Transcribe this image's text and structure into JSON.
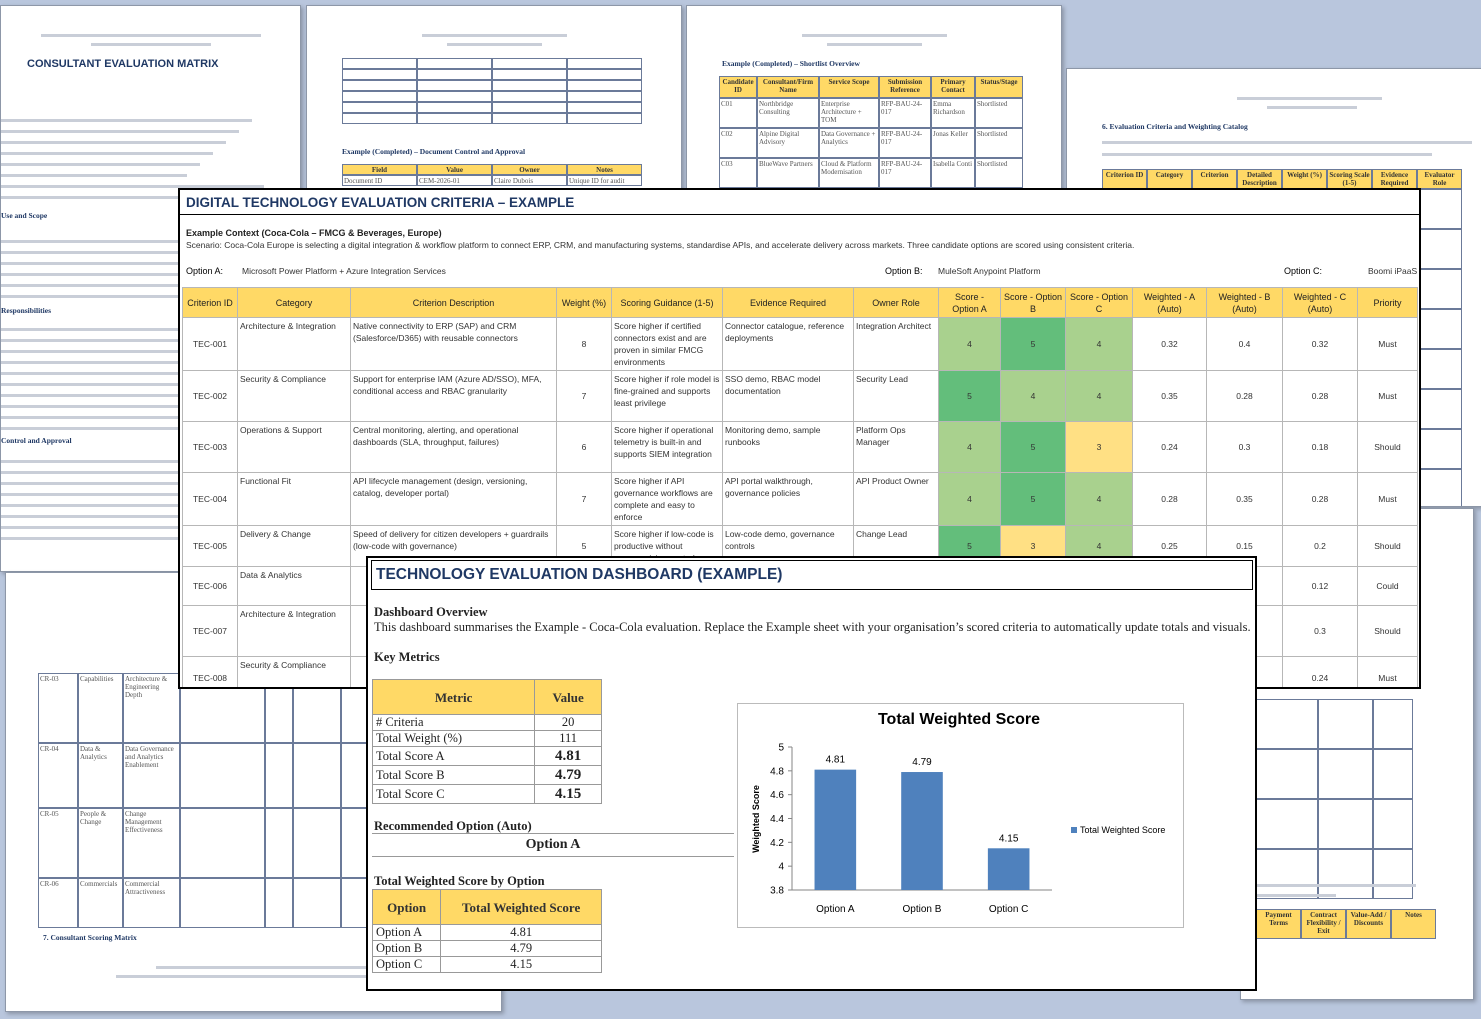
{
  "background_pages": {
    "matrix_cover": {
      "title": "CONSULTANT EVALUATION MATRIX",
      "headings": [
        "Use and Scope",
        "Responsibilities",
        "Control and Approval"
      ]
    },
    "document_control": {
      "section": "Example (Completed) – Document Control and Approval",
      "headers": [
        "Field",
        "Value",
        "Owner",
        "Notes"
      ],
      "row": [
        "Document ID",
        "CEM-2026-01",
        "Claire Dubois",
        "Unique ID for audit"
      ]
    },
    "shortlist": {
      "section": "Example (Completed) – Shortlist Overview",
      "headers": [
        "Candidate ID",
        "Consultant/Firm Name",
        "Service Scope",
        "Submission Reference",
        "Primary Contact",
        "Status/Stage"
      ],
      "rows": [
        [
          "C01",
          "Northbridge Consulting",
          "Enterprise Architecture + TOM",
          "RFP-BAU-24-017",
          "Emma Richardson",
          "Shortlisted"
        ],
        [
          "C02",
          "Alpine Digital Advisory",
          "Data Governance + Analytics",
          "RFP-BAU-24-017",
          "Jonas Keller",
          "Shortlisted"
        ],
        [
          "C03",
          "BlueWave Partners",
          "Cloud & Platform Modernisation",
          "RFP-BAU-24-017",
          "Isabella Conti",
          "Shortlisted"
        ]
      ]
    },
    "catalog": {
      "section": "6. Evaluation Criteria and Weighting Catalog",
      "headers": [
        "Criterion ID",
        "Category",
        "Criterion",
        "Detailed Description",
        "Weight (%)",
        "Scoring Scale (1-5)",
        "Evidence Required",
        "Evaluator Role"
      ]
    },
    "scoring_matrix": {
      "caption": "7. Consultant Scoring Matrix",
      "rows": [
        [
          "CR-03",
          "Capabilities",
          "Architecture & Engineering Depth"
        ],
        [
          "CR-04",
          "Data & Analytics",
          "Data Governance and Analytics Enablement"
        ],
        [
          "CR-05",
          "People & Change",
          "Change Management Effectiveness"
        ],
        [
          "CR-06",
          "Commercials",
          "Commercial Attractiveness"
        ]
      ]
    },
    "commercials": {
      "headers": [
        "Payment Terms",
        "Contract Flexibility / Exit",
        "Value-Add / Discounts",
        "Notes"
      ]
    }
  },
  "criteria_sheet": {
    "title": "DIGITAL TECHNOLOGY EVALUATION CRITERIA – EXAMPLE",
    "context_heading": "Example Context (Coca-Cola – FMCG & Beverages, Europe)",
    "scenario": "Scenario: Coca-Cola Europe is selecting a digital integration & workflow platform to connect ERP, CRM, and manufacturing systems, standardise APIs, and accelerate delivery across markets. Three candidate options are scored using consistent criteria.",
    "options": [
      {
        "label": "Option A:",
        "value": "Microsoft Power Platform + Azure Integration Services"
      },
      {
        "label": "Option B:",
        "value": "MuleSoft Anypoint Platform"
      },
      {
        "label": "Option C:",
        "value": "Boomi iPaaS"
      }
    ],
    "columns": [
      "Criterion ID",
      "Category",
      "Criterion Description",
      "Weight (%)",
      "Scoring Guidance (1-5)",
      "Evidence Required",
      "Owner Role",
      "Score - Option A",
      "Score - Option B",
      "Score - Option C",
      "Weighted - A (Auto)",
      "Weighted - B (Auto)",
      "Weighted - C (Auto)",
      "Priority"
    ],
    "rows": [
      {
        "id": "TEC-001",
        "category": "Architecture & Integration",
        "description": "Native connectivity to ERP (SAP) and CRM (Salesforce/D365) with reusable connectors",
        "weight": 8,
        "guidance": "Score higher if certified connectors exist and are proven in similar FMCG environments",
        "evidence": "Connector catalogue, reference deployments",
        "owner": "Integration Architect",
        "score_a": 4,
        "score_b": 5,
        "score_c": 4,
        "weighted_a": 0.32,
        "weighted_b": 0.4,
        "weighted_c": 0.32,
        "priority": "Must"
      },
      {
        "id": "TEC-002",
        "category": "Security & Compliance",
        "description": "Support for enterprise IAM (Azure AD/SSO), MFA, conditional access and RBAC granularity",
        "weight": 7,
        "guidance": "Score higher if role model is fine-grained and supports least privilege",
        "evidence": "SSO demo, RBAC model documentation",
        "owner": "Security Lead",
        "score_a": 5,
        "score_b": 4,
        "score_c": 4,
        "weighted_a": 0.35,
        "weighted_b": 0.28,
        "weighted_c": 0.28,
        "priority": "Must"
      },
      {
        "id": "TEC-003",
        "category": "Operations & Support",
        "description": "Central monitoring, alerting, and operational dashboards (SLA, throughput, failures)",
        "weight": 6,
        "guidance": "Score higher if operational telemetry is built-in and supports SIEM integration",
        "evidence": "Monitoring demo, sample runbooks",
        "owner": "Platform Ops Manager",
        "score_a": 4,
        "score_b": 5,
        "score_c": 3,
        "weighted_a": 0.24,
        "weighted_b": 0.3,
        "weighted_c": 0.18,
        "priority": "Should"
      },
      {
        "id": "TEC-004",
        "category": "Functional Fit",
        "description": "API lifecycle management (design, versioning, catalog, developer portal)",
        "weight": 7,
        "guidance": "Score higher if API governance workflows are complete and easy to enforce",
        "evidence": "API portal walkthrough, governance policies",
        "owner": "API Product Owner",
        "score_a": 4,
        "score_b": 5,
        "score_c": 4,
        "weighted_a": 0.28,
        "weighted_b": 0.35,
        "weighted_c": 0.28,
        "priority": "Must"
      },
      {
        "id": "TEC-005",
        "category": "Delivery & Change",
        "description": "Speed of delivery for citizen developers + guardrails (low-code with governance)",
        "weight": 5,
        "guidance": "Score higher if low-code is productive without compromising controls",
        "evidence": "Low-code demo, governance controls",
        "owner": "Change Lead",
        "score_a": 5,
        "score_b": 3,
        "score_c": 4,
        "weighted_a": 0.25,
        "weighted_b": 0.15,
        "weighted_c": 0.2,
        "priority": "Should"
      },
      {
        "id": "TEC-006",
        "category": "Data & Analytics",
        "weighted_c": 0.12,
        "priority": "Could"
      },
      {
        "id": "TEC-007",
        "category": "Architecture & Integration",
        "weighted_c": 0.3,
        "priority": "Should"
      },
      {
        "id": "TEC-008",
        "category": "Security & Compliance",
        "weighted_c": 0.24,
        "priority": "Must"
      }
    ]
  },
  "dashboard": {
    "title": "TECHNOLOGY EVALUATION DASHBOARD (EXAMPLE)",
    "overview_heading": "Dashboard Overview",
    "overview_text": "This dashboard summarises the Example - Coca-Cola evaluation. Replace the Example sheet with your organisation’s scored criteria to automatically update totals and visuals.",
    "metrics_heading": "Key Metrics",
    "metrics_headers": [
      "Metric",
      "Value"
    ],
    "metrics": [
      [
        "# Criteria",
        20
      ],
      [
        "Total Weight (%)",
        111
      ],
      [
        "Total Score A",
        4.81
      ],
      [
        "Total Score B",
        4.79
      ],
      [
        "Total Score C",
        4.15
      ]
    ],
    "recommended_heading": "Recommended Option (Auto)",
    "recommended_value": "Option A",
    "by_option_heading": "Total Weighted Score by Option",
    "by_option_headers": [
      "Option",
      "Total Weighted Score"
    ],
    "by_option": [
      [
        "Option A",
        4.81
      ],
      [
        "Option B",
        4.79
      ],
      [
        "Option C",
        4.15
      ]
    ]
  },
  "chart_data": {
    "type": "bar",
    "title": "Total Weighted Score",
    "y_label": "Weighted Score",
    "categories": [
      "Option A",
      "Option B",
      "Option C"
    ],
    "series": [
      {
        "name": "Total Weighted Score",
        "color": "#4f81bd",
        "values": [
          4.81,
          4.79,
          4.15
        ]
      }
    ],
    "ylim": [
      3.8,
      5
    ],
    "yticks": [
      3.8,
      4,
      4.2,
      4.4,
      4.6,
      4.8,
      5
    ],
    "data_labels": true,
    "legend": "right"
  }
}
